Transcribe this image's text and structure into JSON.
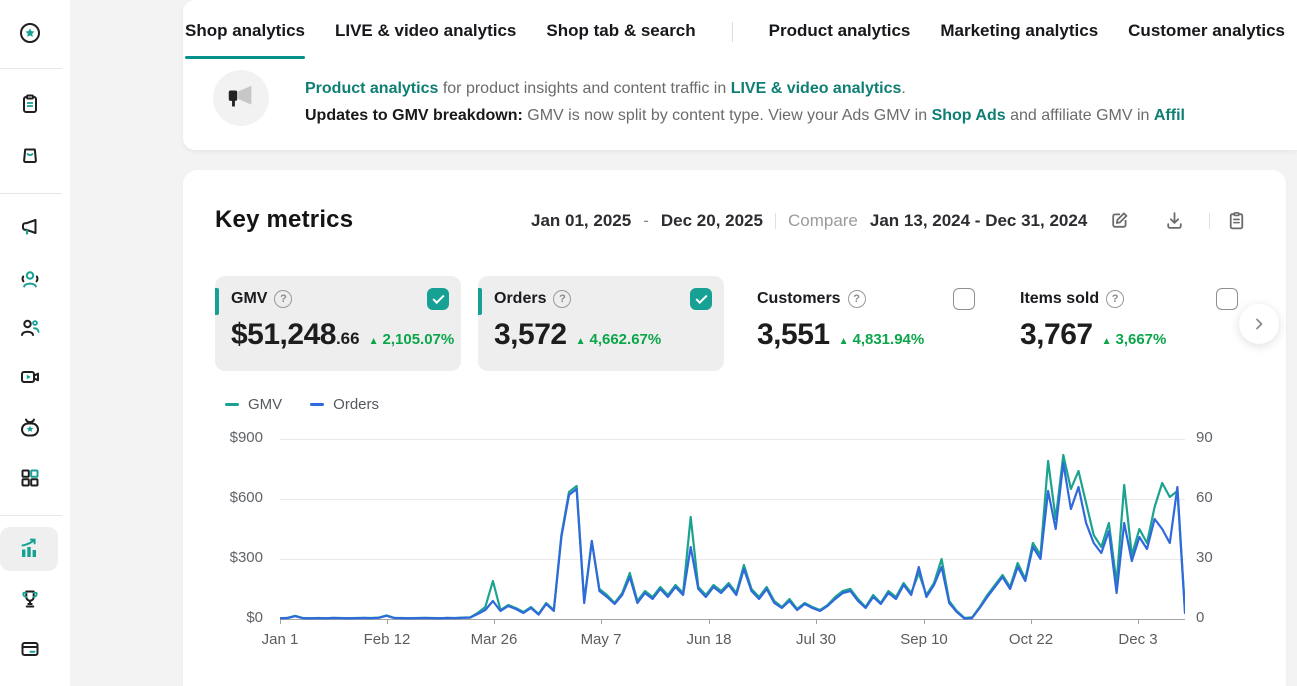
{
  "colors": {
    "accent_teal": "#17a094",
    "link_teal": "#0f7f73",
    "tab_underline": "#00928a",
    "delta_green": "#0ba64a",
    "page_bg": "#f3f3f3",
    "selected_card_bg": "#eeeeee"
  },
  "sidebar": {
    "items": [
      "home-star-icon",
      "orders-clipboard-icon",
      "products-bag-icon",
      "marketing-megaphone-icon",
      "affiliate-creator-icon",
      "customers-people-icon",
      "content-video-icon",
      "live-tv-icon",
      "apps-grid-icon",
      "analytics-chart-icon",
      "rewards-trophy-icon",
      "finance-card-icon"
    ],
    "active_item": "analytics-chart-icon"
  },
  "tabs": {
    "items": [
      {
        "label": "Shop analytics"
      },
      {
        "label": "LIVE & video analytics"
      },
      {
        "label": "Shop tab & search"
      },
      {
        "label": "Product analytics"
      },
      {
        "label": "Marketing analytics"
      },
      {
        "label": "Customer analytics"
      }
    ],
    "active_index": 0
  },
  "banner": {
    "icon": "megaphone-icon",
    "line1": [
      {
        "text": "Product analytics"
      },
      {
        "text": " for product insights and content traffic in "
      },
      {
        "text": "LIVE & video analytics"
      },
      {
        "text": "."
      }
    ],
    "line2": [
      {
        "text": "Updates to GMV breakdown:"
      },
      {
        "text": "  GMV is now split by content type. View your Ads GMV in "
      },
      {
        "text": "Shop Ads"
      },
      {
        "text": " and affiliate GMV in "
      },
      {
        "text": "Affil"
      }
    ]
  },
  "key_metrics": {
    "title": "Key metrics",
    "date_start": "Jan 01, 2025",
    "date_sep": "-",
    "date_end": "Dec 20, 2025",
    "compare_label": "Compare",
    "compare_range": "Jan 13, 2024 - Dec 31, 2024",
    "icons": [
      "edit-icon",
      "download-icon",
      "report-icon"
    ],
    "help_glyph": "?",
    "cards": [
      {
        "label": "GMV",
        "value_main": "$51,248",
        "value_frac": ".66",
        "delta_icon": "▲",
        "delta": "2,105.07%",
        "checked": true,
        "selected": true
      },
      {
        "label": "Orders",
        "value_main": "3,572",
        "value_frac": "",
        "delta_icon": "▲",
        "delta": "4,662.67%",
        "checked": true,
        "selected": true
      },
      {
        "label": "Customers",
        "value_main": "3,551",
        "value_frac": "",
        "delta_icon": "▲",
        "delta": "4,831.94%",
        "checked": false,
        "selected": false
      },
      {
        "label": "Items sold",
        "value_main": "3,767",
        "value_frac": "",
        "delta_icon": "▲",
        "delta": "3,667%",
        "checked": false,
        "selected": false
      }
    ]
  },
  "chart_data": {
    "type": "line",
    "x_labels": [
      "Jan 1",
      "Feb 12",
      "Mar 26",
      "May 7",
      "Jun 18",
      "Jul 30",
      "Sep 10",
      "Oct 22",
      "Dec 3"
    ],
    "y_left_labels": [
      "$900",
      "$600",
      "$300",
      "$0"
    ],
    "y_right_labels": [
      "90",
      "60",
      "30",
      "0"
    ],
    "y_left_range": [
      0,
      900
    ],
    "y_right_range": [
      0,
      90
    ],
    "grid": true,
    "legend_position": "top-left",
    "series": [
      {
        "name": "GMV",
        "axis": "left",
        "color": "#1ba390",
        "values": [
          4,
          6,
          16,
          5,
          4,
          5,
          4,
          6,
          5,
          4,
          5,
          6,
          5,
          7,
          18,
          6,
          5,
          4,
          5,
          6,
          5,
          4,
          6,
          5,
          7,
          8,
          30,
          60,
          190,
          45,
          70,
          55,
          35,
          60,
          25,
          80,
          45,
          420,
          635,
          665,
          90,
          390,
          150,
          120,
          80,
          130,
          230,
          90,
          140,
          110,
          160,
          120,
          170,
          130,
          510,
          160,
          120,
          170,
          140,
          180,
          130,
          270,
          150,
          110,
          160,
          90,
          60,
          100,
          50,
          80,
          60,
          45,
          70,
          110,
          140,
          150,
          100,
          60,
          120,
          80,
          140,
          110,
          180,
          130,
          230,
          120,
          180,
          300,
          90,
          40,
          5,
          8,
          60,
          120,
          170,
          220,
          160,
          280,
          200,
          380,
          320,
          790,
          500,
          820,
          650,
          740,
          580,
          420,
          360,
          480,
          180,
          670,
          320,
          450,
          380,
          560,
          680,
          610,
          640,
          40
        ]
      },
      {
        "name": "Orders",
        "axis": "right",
        "color": "#3069db",
        "values": [
          0.3,
          0.5,
          1.4,
          0.4,
          0.3,
          0.4,
          0.3,
          0.5,
          0.4,
          0.3,
          0.4,
          0.5,
          0.4,
          0.6,
          1.6,
          0.5,
          0.4,
          0.3,
          0.4,
          0.5,
          0.4,
          0.3,
          0.5,
          0.4,
          0.6,
          0.7,
          2.5,
          4.5,
          9,
          4,
          6.5,
          5,
          3,
          5.5,
          2.2,
          7.5,
          4,
          41,
          62,
          65,
          8,
          39,
          14,
          11,
          7.5,
          12,
          21,
          8,
          13,
          10,
          15,
          11,
          16,
          12,
          36,
          15,
          11,
          16,
          13,
          17,
          12,
          25,
          14,
          10,
          15,
          8,
          5.5,
          9,
          4.5,
          7.5,
          5.5,
          4,
          6.5,
          10,
          13,
          14,
          9,
          5.5,
          11,
          7.5,
          13,
          10,
          17,
          12,
          26,
          11,
          17,
          26,
          8,
          3.5,
          0.2,
          0.5,
          5.5,
          11,
          16,
          21,
          15,
          26,
          19,
          36,
          30,
          64,
          45,
          78,
          55,
          66,
          48,
          38,
          33,
          44,
          13,
          48,
          29,
          41,
          35,
          50,
          45,
          38,
          66,
          3
        ]
      }
    ]
  }
}
